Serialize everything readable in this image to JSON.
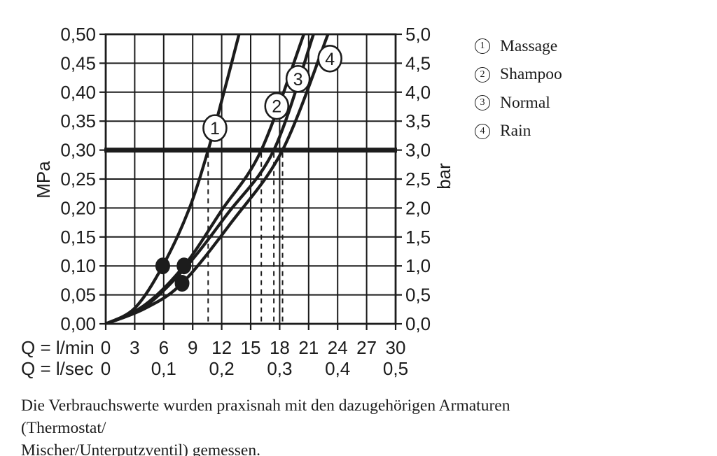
{
  "chart_data": {
    "type": "line",
    "title": "",
    "x_axis": {
      "label_lmin": "Q = l/min",
      "label_lsec": "Q = l/sec",
      "ticks_lmin": [
        "0",
        "3",
        "6",
        "9",
        "12",
        "15",
        "18",
        "21",
        "24",
        "27",
        "30"
      ],
      "ticks_lsec": [
        "0",
        "0,1",
        "0,2",
        "0,3",
        "0,4",
        "0,5"
      ],
      "range_lmin": [
        0,
        30
      ],
      "grid_step_lmin": 3
    },
    "y_axis_left": {
      "label": "MPa",
      "ticks": [
        "0,50",
        "0,45",
        "0,40",
        "0,35",
        "0,30",
        "0,25",
        "0,20",
        "0,15",
        "0,10",
        "0,05",
        "0,00"
      ],
      "range": [
        0,
        0.5
      ],
      "grid_step": 0.05
    },
    "y_axis_right": {
      "label": "bar",
      "ticks": [
        "5,0",
        "4,5",
        "4,0",
        "3,5",
        "3,0",
        "2,5",
        "2,0",
        "1,5",
        "1,0",
        "0,5",
        "0,0"
      ],
      "range": [
        0,
        5
      ]
    },
    "reference_line": {
      "mpa": 0.3,
      "bar": 3.0
    },
    "series": [
      {
        "num": "1",
        "name": "Massage",
        "points": [
          [
            0,
            0
          ],
          [
            3,
            0.027
          ],
          [
            5.9,
            0.1
          ],
          [
            8.6,
            0.197
          ],
          [
            10.6,
            0.3
          ],
          [
            12.3,
            0.404
          ],
          [
            13.8,
            0.5
          ]
        ],
        "marker_pos": [
          11.3,
          0.338
        ],
        "flow_at_3bar_lmin": 10.6
      },
      {
        "num": "2",
        "name": "Shampoo",
        "points": [
          [
            0,
            0
          ],
          [
            4,
            0.032
          ],
          [
            8.1,
            0.1
          ],
          [
            12.0,
            0.196
          ],
          [
            16.1,
            0.3
          ],
          [
            20.5,
            0.5
          ]
        ],
        "marker_pos": [
          17.7,
          0.376
        ],
        "flow_at_3bar_lmin": 16.1
      },
      {
        "num": "3",
        "name": "Normal",
        "points": [
          [
            0,
            0
          ],
          [
            4,
            0.029
          ],
          [
            8.3,
            0.098
          ],
          [
            12.6,
            0.19
          ],
          [
            17.4,
            0.3
          ],
          [
            21.5,
            0.5
          ]
        ],
        "marker_pos": [
          19.9,
          0.423
        ],
        "flow_at_3bar_lmin": 17.4
      },
      {
        "num": "4",
        "name": "Rain",
        "points": [
          [
            0,
            0
          ],
          [
            4,
            0.026
          ],
          [
            7.9,
            0.07
          ],
          [
            13.0,
            0.175
          ],
          [
            18.3,
            0.3
          ],
          [
            23.0,
            0.5
          ]
        ],
        "marker_pos": [
          23.2,
          0.458
        ],
        "flow_at_3bar_lmin": 18.3
      }
    ],
    "data_dots_lmin_mpa": [
      [
        5.9,
        0.1
      ],
      [
        8.1,
        0.1
      ],
      [
        7.9,
        0.07
      ]
    ],
    "dashed_guides_lmin": [
      10.6,
      16.1,
      17.4,
      18.3
    ],
    "grid_on": true,
    "legend_position": "right",
    "ink_color": "#1c1c1c",
    "background_color": "#ffffff"
  },
  "legend": {
    "items": [
      {
        "num": "1",
        "label": "Massage"
      },
      {
        "num": "2",
        "label": "Shampoo"
      },
      {
        "num": "3",
        "label": "Normal"
      },
      {
        "num": "4",
        "label": "Rain"
      }
    ]
  },
  "caption": {
    "line1": "Die Verbrauchswerte wurden praxisnah mit den dazugehörigen Armaturen (Thermostat/",
    "line2": "Mischer/Unterputzventil) gemessen."
  }
}
